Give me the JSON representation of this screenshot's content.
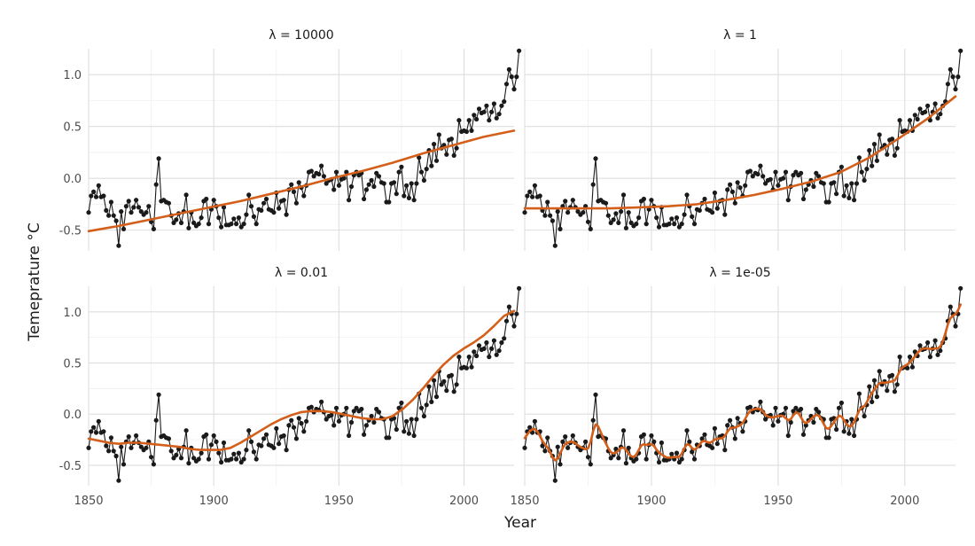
{
  "chart_data": {
    "type": "line",
    "xlabel": "Year",
    "ylabel": "Temeprature °C",
    "xlim": [
      1850,
      2020
    ],
    "ylim": [
      -0.7,
      1.25
    ],
    "x_ticks": [
      1850,
      1900,
      1950,
      2000
    ],
    "x_tick_labels": [
      "1850",
      "1900",
      "1950",
      "2000"
    ],
    "y_ticks": [
      -0.5,
      0.0,
      0.5,
      1.0
    ],
    "y_tick_labels": [
      "-0.5",
      "0.0",
      "0.5",
      "1.0"
    ],
    "colors": {
      "observed": "#1a1a1a",
      "smooth": "#d35f1a",
      "grid": "#dedede"
    },
    "grid": true,
    "years_start": 1850,
    "observed": [
      -0.33,
      -0.17,
      -0.13,
      -0.18,
      -0.07,
      -0.18,
      -0.17,
      -0.31,
      -0.36,
      -0.23,
      -0.36,
      -0.41,
      -0.65,
      -0.32,
      -0.49,
      -0.27,
      -0.22,
      -0.33,
      -0.28,
      -0.21,
      -0.28,
      -0.32,
      -0.35,
      -0.33,
      -0.27,
      -0.42,
      -0.49,
      -0.06,
      0.19,
      -0.22,
      -0.21,
      -0.23,
      -0.24,
      -0.36,
      -0.43,
      -0.4,
      -0.34,
      -0.43,
      -0.32,
      -0.16,
      -0.48,
      -0.33,
      -0.43,
      -0.46,
      -0.44,
      -0.38,
      -0.22,
      -0.2,
      -0.44,
      -0.3,
      -0.21,
      -0.27,
      -0.38,
      -0.47,
      -0.28,
      -0.45,
      -0.45,
      -0.44,
      -0.39,
      -0.44,
      -0.38,
      -0.47,
      -0.44,
      -0.35,
      -0.16,
      -0.27,
      -0.37,
      -0.44,
      -0.3,
      -0.31,
      -0.24,
      -0.2,
      -0.3,
      -0.31,
      -0.33,
      -0.14,
      -0.29,
      -0.22,
      -0.21,
      -0.35,
      -0.11,
      -0.06,
      -0.13,
      -0.24,
      -0.04,
      -0.09,
      -0.17,
      -0.07,
      0.06,
      0.07,
      0.02,
      0.05,
      0.04,
      0.12,
      0.02,
      -0.05,
      -0.02,
      -0.01,
      -0.11,
      0.06,
      -0.07,
      -0.01,
      0.0,
      0.06,
      -0.21,
      -0.08,
      0.03,
      0.06,
      0.03,
      0.05,
      -0.2,
      -0.11,
      -0.06,
      -0.02,
      -0.08,
      0.05,
      0.02,
      -0.04,
      -0.05,
      -0.23,
      -0.23,
      -0.05,
      -0.04,
      -0.15,
      0.06,
      0.11,
      -0.17,
      -0.07,
      -0.19,
      -0.05,
      -0.21,
      -0.05,
      0.2,
      0.06,
      -0.02,
      0.09,
      0.27,
      0.12,
      0.33,
      0.17,
      0.42,
      0.29,
      0.32,
      0.23,
      0.37,
      0.38,
      0.22,
      0.29,
      0.56,
      0.45,
      0.46,
      0.45,
      0.56,
      0.46,
      0.61,
      0.57,
      0.67,
      0.63,
      0.64,
      0.7,
      0.56,
      0.64,
      0.72,
      0.58,
      0.62,
      0.7,
      0.74,
      0.91,
      1.05,
      0.98,
      0.86,
      0.98,
      1.23
    ],
    "panels": [
      {
        "label": "λ = 10000",
        "smooth": [
          -0.51,
          -0.46,
          -0.4,
          -0.34,
          -0.28,
          -0.22,
          -0.15,
          -0.08,
          0.0,
          0.07,
          0.15,
          0.24,
          0.32,
          0.4,
          0.46
        ]
      },
      {
        "label": "λ = 1",
        "smooth": [
          -0.29,
          -0.29,
          -0.29,
          -0.29,
          -0.28,
          -0.27,
          -0.25,
          -0.21,
          -0.16,
          -0.1,
          -0.03,
          0.06,
          0.2,
          0.38,
          0.57,
          0.79
        ]
      },
      {
        "label": "λ = 0.01",
        "smooth": [
          -0.24,
          -0.26,
          -0.28,
          -0.29,
          -0.28,
          -0.28,
          -0.29,
          -0.3,
          -0.31,
          -0.32,
          -0.34,
          -0.35,
          -0.35,
          -0.35,
          -0.33,
          -0.28,
          -0.22,
          -0.16,
          -0.1,
          -0.05,
          -0.01,
          0.02,
          0.03,
          0.03,
          0.02,
          0.0,
          -0.02,
          -0.04,
          -0.05,
          -0.05,
          -0.02,
          0.05,
          0.14,
          0.25,
          0.37,
          0.48,
          0.57,
          0.64,
          0.7,
          0.77,
          0.86,
          0.96,
          1.01
        ]
      },
      {
        "label": "λ = 1e-05",
        "smooth": []
      }
    ]
  }
}
